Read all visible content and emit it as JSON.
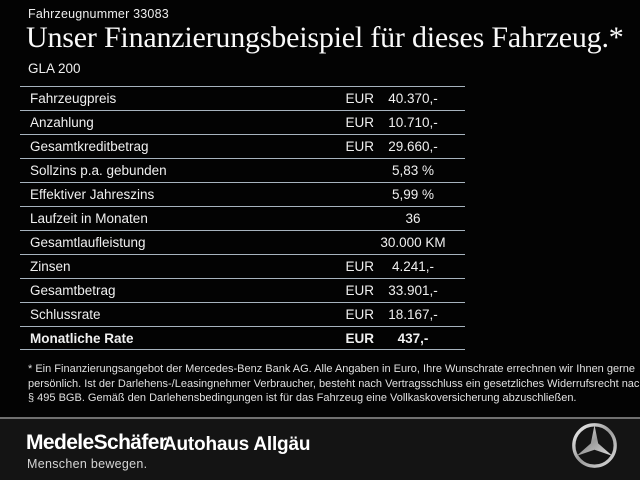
{
  "header": {
    "vehicle_number": "Fahrzeugnummer 33083",
    "title": "Unser Finanzierungsbeispiel für dieses Fahrzeug.*",
    "model": "GLA 200"
  },
  "table": {
    "rows": [
      {
        "label": "Fahrzeugpreis",
        "currency": "EUR",
        "value": "40.370,-",
        "bold": false
      },
      {
        "label": "Anzahlung",
        "currency": "EUR",
        "value": "10.710,-",
        "bold": false
      },
      {
        "label": "Gesamtkreditbetrag",
        "currency": "EUR",
        "value": "29.660,-",
        "bold": false
      },
      {
        "label": "Sollzins p.a. gebunden",
        "currency": "",
        "value": "5,83 %",
        "bold": false
      },
      {
        "label": "Effektiver Jahreszins",
        "currency": "",
        "value": "5,99 %",
        "bold": false
      },
      {
        "label": "Laufzeit in Monaten",
        "currency": "",
        "value": "36",
        "bold": false
      },
      {
        "label": "Gesamtlaufleistung",
        "currency": "",
        "value": "30.000 KM",
        "bold": false
      },
      {
        "label": "Zinsen",
        "currency": "EUR",
        "value": "4.241,-",
        "bold": false
      },
      {
        "label": "Gesamtbetrag",
        "currency": "EUR",
        "value": "33.901,-",
        "bold": false
      },
      {
        "label": "Schlussrate",
        "currency": "EUR",
        "value": "18.167,-",
        "bold": false
      },
      {
        "label": "Monatliche Rate",
        "currency": "EUR",
        "value": "437,-",
        "bold": true
      }
    ]
  },
  "footnote": {
    "lines": [
      "* Ein Finanzierungsangebot der Mercedes-Benz Bank AG. Alle Angaben in Euro, Ihre Wunschrate errechnen wir Ihnen gerne",
      "persönlich. Ist der Darlehens-/Leasingnehmer Verbraucher, besteht nach Vertragsschluss ein gesetzliches Widerrufsrecht nach",
      "§ 495 BGB. Gemäß den Darlehensbedingungen ist für das Fahrzeug eine Vollkaskoversicherung abzuschließen."
    ]
  },
  "footer": {
    "dealer_name": "MedeleSchäfer",
    "dealer_tagline": "Menschen bewegen.",
    "dealer_name_2": "Autohaus Allgäu",
    "brand_icon": "mercedes-star-icon"
  },
  "colors": {
    "background": "#030303",
    "footer_background": "#141414",
    "line": "#a7b3be",
    "divider": "#6f6f6f",
    "text": "#f2f2f2"
  }
}
